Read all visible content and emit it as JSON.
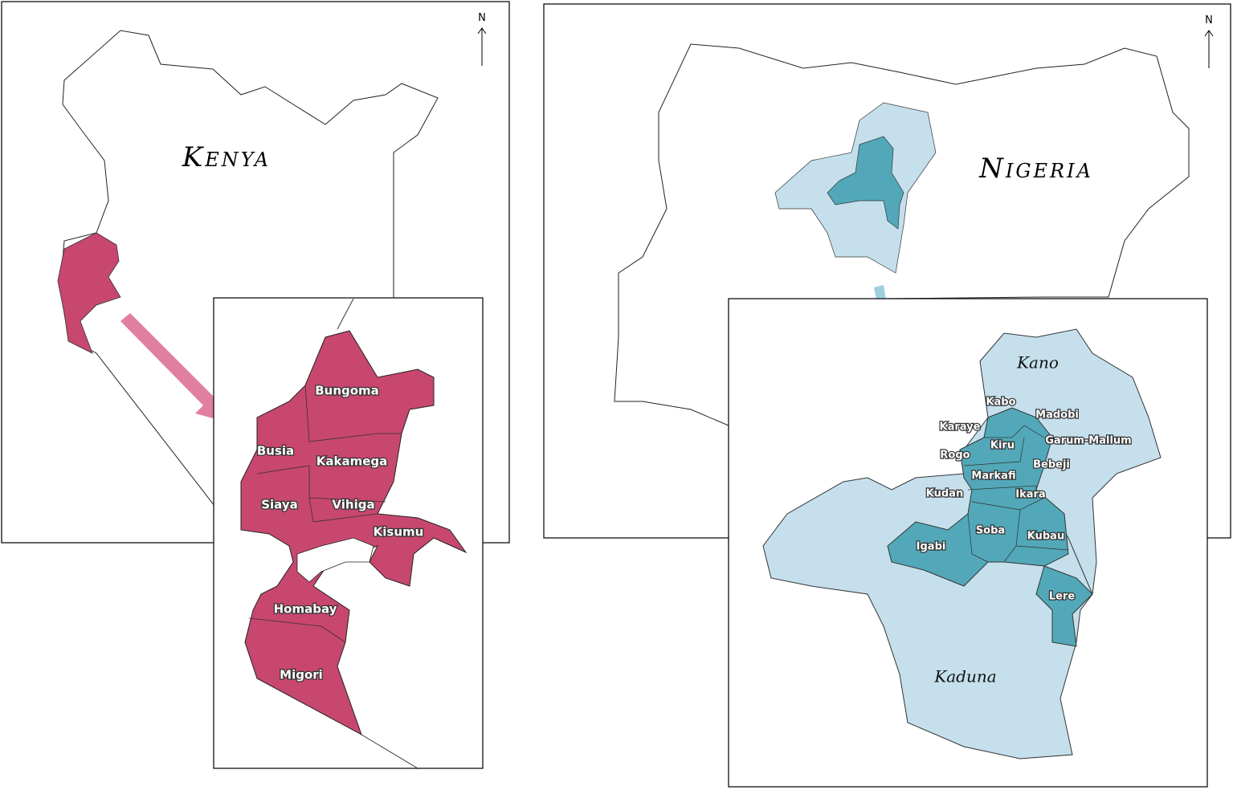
{
  "kenya": {
    "title": "Kenya",
    "north": "N",
    "counties": [
      "Bungoma",
      "Busia",
      "Kakamega",
      "Siaya",
      "Vihiga",
      "Kisumu",
      "Homabay",
      "Migori"
    ]
  },
  "nigeria": {
    "title": "Nigeria",
    "north": "N",
    "states": [
      "Kano",
      "Kaduna"
    ],
    "lgas": [
      "Kabo",
      "Madobi",
      "Karaye",
      "Kiru",
      "Garum-Mallum",
      "Rogo",
      "Bebeji",
      "Markafi",
      "Kudan",
      "Ikara",
      "Soba",
      "Kubau",
      "Igabi",
      "Lere"
    ]
  }
}
